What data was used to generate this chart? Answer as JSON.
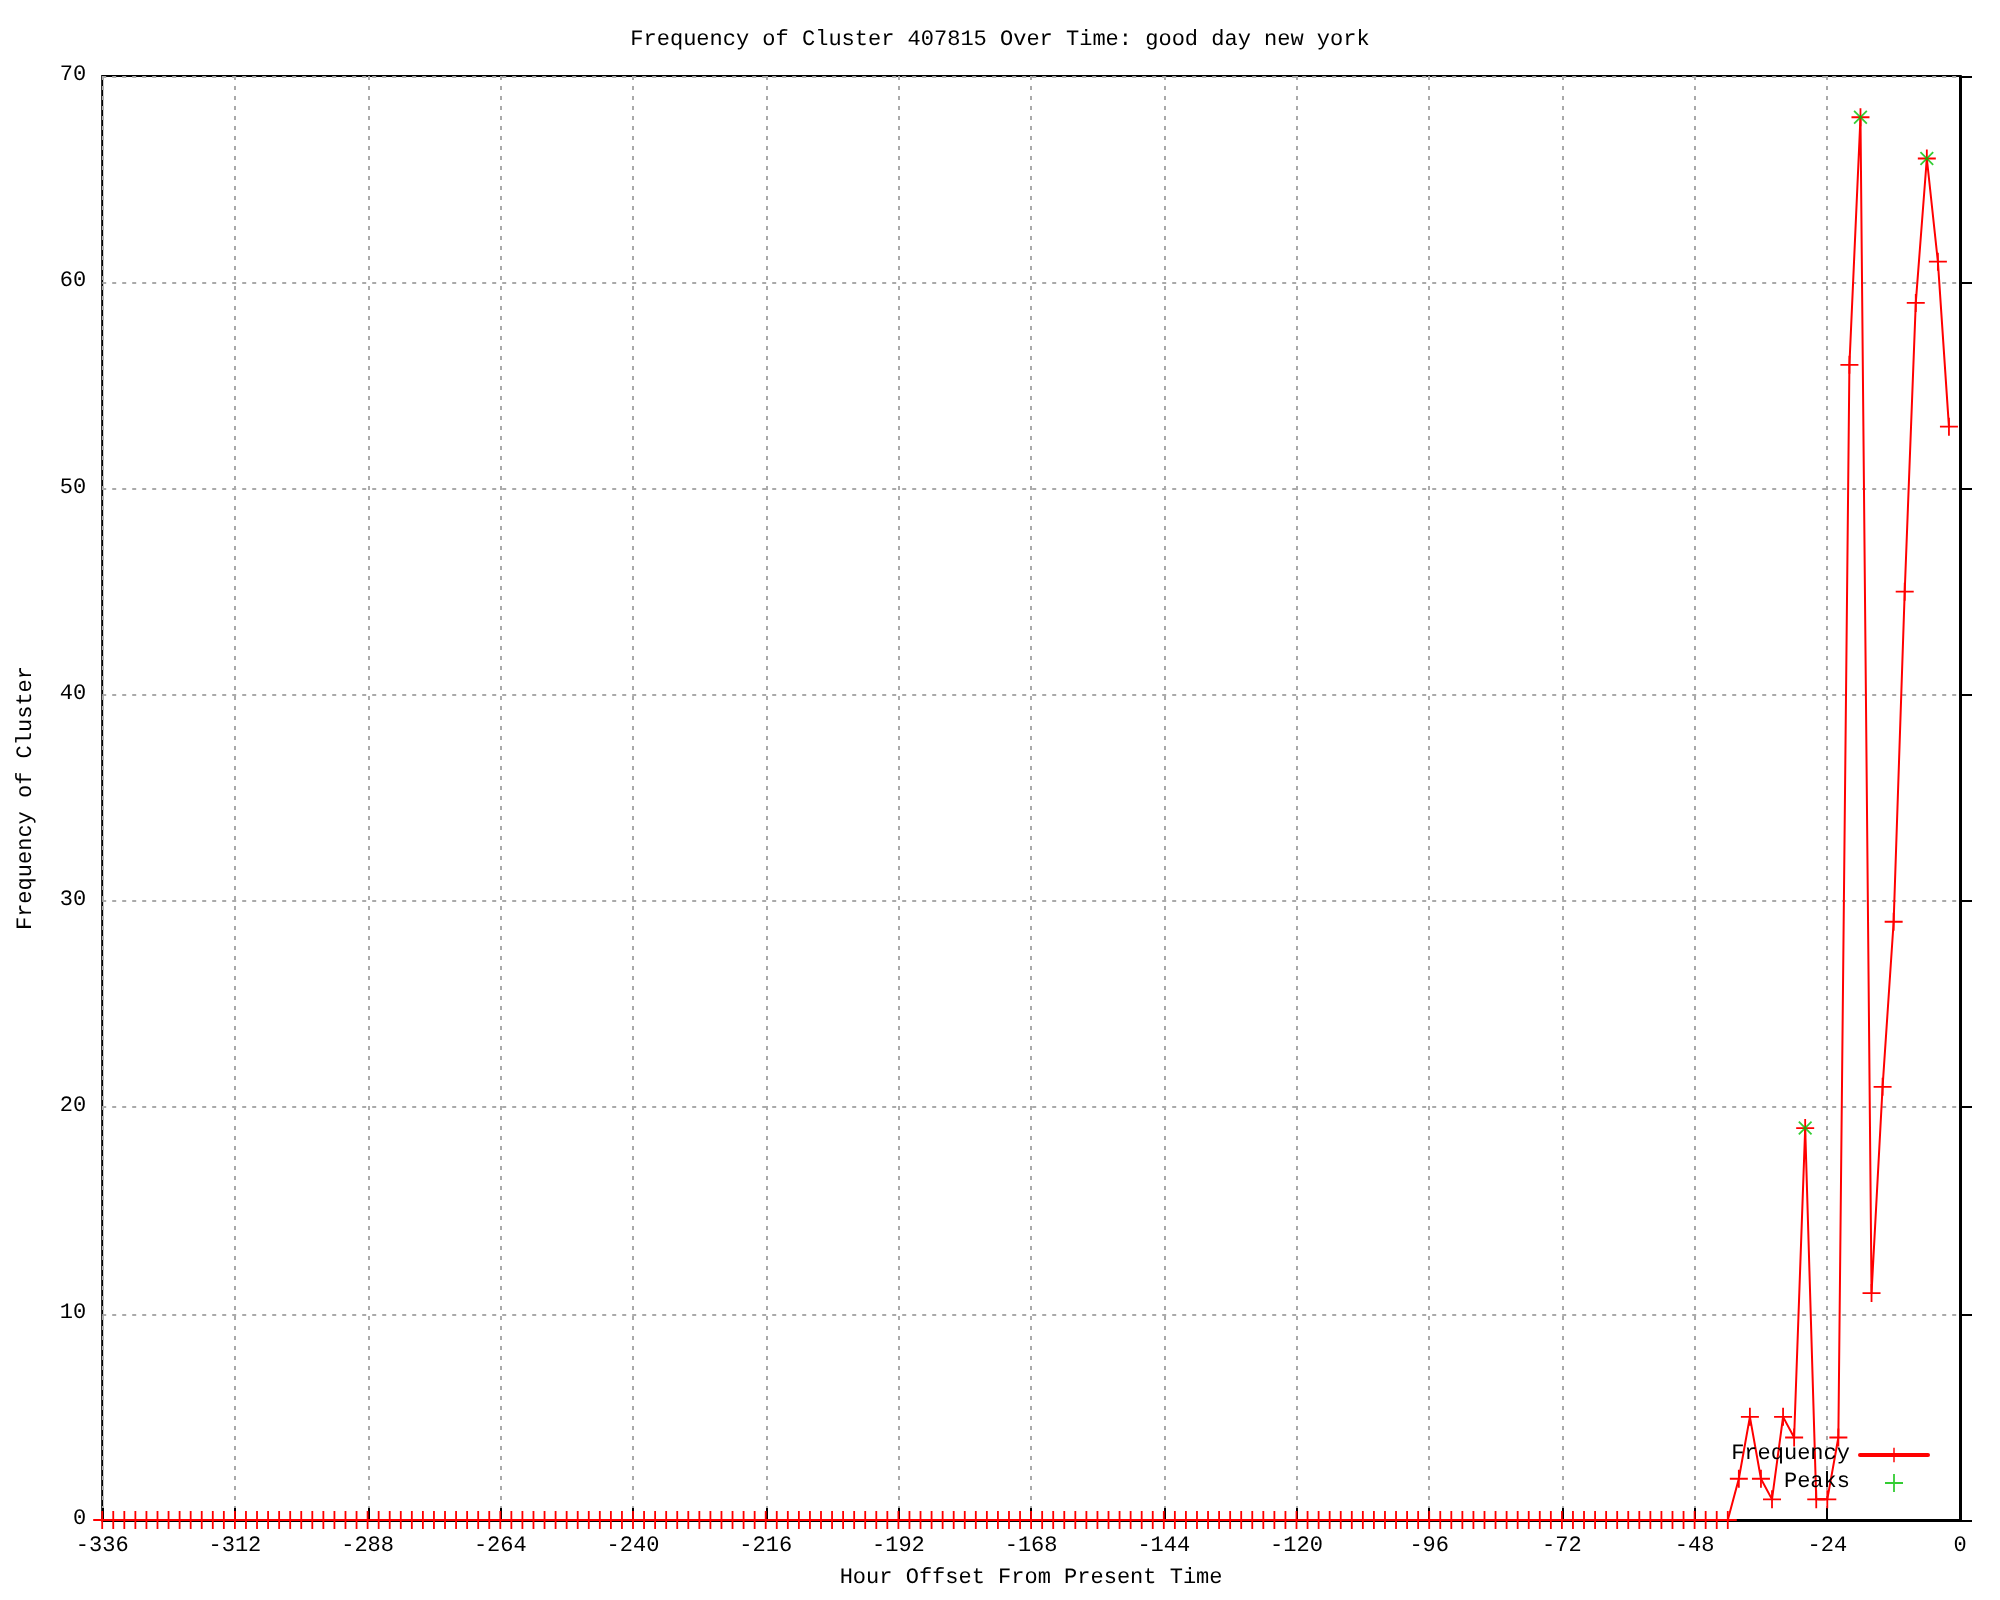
{
  "chart_data": {
    "type": "line",
    "title": "Frequency of Cluster 407815 Over Time: good day new york",
    "xlabel": "Hour Offset From Present Time",
    "ylabel": "Frequency of Cluster",
    "xlim": [
      -336,
      0
    ],
    "xticks": [
      -336,
      -312,
      -288,
      -264,
      -240,
      -216,
      -192,
      -168,
      -144,
      -120,
      -96,
      -72,
      -48,
      -24,
      0
    ],
    "ylim": [
      0,
      70
    ],
    "yticks": [
      0,
      10,
      20,
      30,
      40,
      50,
      60,
      70
    ],
    "grid": true,
    "legend": "bottom right",
    "line_style": "solid",
    "series": [
      {
        "name": "Frequency",
        "marker": "cross",
        "color": "#ff0000",
        "x": [
          -336,
          -334,
          -332,
          -330,
          -328,
          -326,
          -324,
          -322,
          -320,
          -318,
          -316,
          -314,
          -312,
          -310,
          -308,
          -306,
          -304,
          -302,
          -300,
          -298,
          -296,
          -294,
          -292,
          -290,
          -288,
          -286,
          -284,
          -282,
          -280,
          -278,
          -276,
          -274,
          -272,
          -270,
          -268,
          -266,
          -264,
          -262,
          -260,
          -258,
          -256,
          -254,
          -252,
          -250,
          -248,
          -246,
          -244,
          -242,
          -240,
          -238,
          -236,
          -234,
          -232,
          -230,
          -228,
          -226,
          -224,
          -222,
          -220,
          -218,
          -216,
          -214,
          -212,
          -210,
          -208,
          -206,
          -204,
          -202,
          -200,
          -198,
          -196,
          -194,
          -192,
          -190,
          -188,
          -186,
          -184,
          -182,
          -180,
          -178,
          -176,
          -174,
          -172,
          -170,
          -168,
          -166,
          -164,
          -162,
          -160,
          -158,
          -156,
          -154,
          -152,
          -150,
          -148,
          -146,
          -144,
          -142,
          -140,
          -138,
          -136,
          -134,
          -132,
          -130,
          -128,
          -126,
          -124,
          -122,
          -120,
          -118,
          -116,
          -114,
          -112,
          -110,
          -108,
          -106,
          -104,
          -102,
          -100,
          -98,
          -96,
          -94,
          -92,
          -90,
          -88,
          -86,
          -84,
          -82,
          -80,
          -78,
          -76,
          -74,
          -72,
          -70,
          -68,
          -66,
          -64,
          -62,
          -60,
          -58,
          -56,
          -54,
          -52,
          -50,
          -48,
          -46,
          -44,
          -42,
          -40,
          -38,
          -36,
          -34,
          -32,
          -30,
          -28,
          -26,
          -24,
          -22,
          -20,
          -18,
          -16,
          -14,
          -12,
          -10,
          -8,
          -6,
          -4,
          -2
        ],
        "values": [
          0,
          0,
          0,
          0,
          0,
          0,
          0,
          0,
          0,
          0,
          0,
          0,
          0,
          0,
          0,
          0,
          0,
          0,
          0,
          0,
          0,
          0,
          0,
          0,
          0,
          0,
          0,
          0,
          0,
          0,
          0,
          0,
          0,
          0,
          0,
          0,
          0,
          0,
          0,
          0,
          0,
          0,
          0,
          0,
          0,
          0,
          0,
          0,
          0,
          0,
          0,
          0,
          0,
          0,
          0,
          0,
          0,
          0,
          0,
          0,
          0,
          0,
          0,
          0,
          0,
          0,
          0,
          0,
          0,
          0,
          0,
          0,
          0,
          0,
          0,
          0,
          0,
          0,
          0,
          0,
          0,
          0,
          0,
          0,
          0,
          0,
          0,
          0,
          0,
          0,
          0,
          0,
          0,
          0,
          0,
          0,
          0,
          0,
          0,
          0,
          0,
          0,
          0,
          0,
          0,
          0,
          0,
          0,
          0,
          0,
          0,
          0,
          0,
          0,
          0,
          0,
          0,
          0,
          0,
          0,
          0,
          0,
          0,
          0,
          0,
          0,
          0,
          0,
          0,
          0,
          0,
          0,
          0,
          0,
          0,
          0,
          0,
          0,
          0,
          0,
          0,
          0,
          0,
          0,
          0,
          0,
          0,
          0,
          2,
          5,
          2,
          1,
          5,
          4,
          19,
          1,
          1,
          4,
          56,
          68,
          11,
          21,
          29,
          45,
          59,
          66,
          61,
          53
        ]
      },
      {
        "name": "Peaks",
        "type": "scatter",
        "marker": "cross",
        "color": "#00c000",
        "x": [
          -28,
          -18,
          -6
        ],
        "values": [
          19,
          68,
          66
        ]
      }
    ]
  }
}
